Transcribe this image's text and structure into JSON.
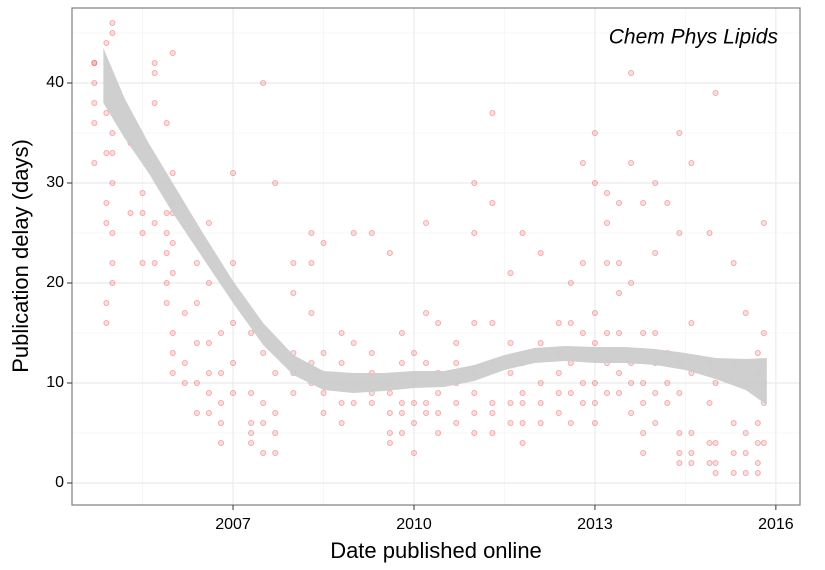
{
  "chart_data": {
    "type": "scatter",
    "annotation": "Chem Phys Lipids",
    "x_label": "Date published online",
    "y_label": "Publication delay (days)",
    "xlim": [
      2004.33,
      2016.4
    ],
    "xticks": [
      2007,
      2010,
      2013,
      2016
    ],
    "xminor": [
      2005.5,
      2008.5,
      2011.5,
      2014.5
    ],
    "ylim": [
      -2.2,
      47.5
    ],
    "yticks": [
      0,
      10,
      20,
      30,
      40
    ],
    "yminor": [
      5,
      15,
      25,
      35,
      45
    ],
    "grid": true,
    "points": {
      "color": "#e41a1c",
      "x": [
        2004.7,
        2004.7,
        2004.7,
        2004.7,
        2004.7,
        2004.7,
        2004.9,
        2004.9,
        2004.9,
        2004.9,
        2004.9,
        2004.9,
        2004.9,
        2005.0,
        2005.0,
        2005.0,
        2005.0,
        2005.0,
        2005.0,
        2005.0,
        2005.0,
        2005.3,
        2005.3,
        2005.5,
        2005.5,
        2005.5,
        2005.5,
        2005.7,
        2005.7,
        2005.7,
        2005.7,
        2005.7,
        2005.9,
        2005.9,
        2005.9,
        2005.9,
        2005.9,
        2005.9,
        2006.0,
        2006.0,
        2006.0,
        2006.0,
        2006.0,
        2006.0,
        2006.0,
        2006.0,
        2006.0,
        2006.2,
        2006.2,
        2006.2,
        2006.4,
        2006.4,
        2006.4,
        2006.4,
        2006.4,
        2006.4,
        2006.6,
        2006.6,
        2006.6,
        2006.6,
        2006.6,
        2006.6,
        2006.8,
        2006.8,
        2006.8,
        2006.8,
        2006.8,
        2007.0,
        2007.0,
        2007.0,
        2007.0,
        2007.0,
        2007.3,
        2007.3,
        2007.3,
        2007.3,
        2007.3,
        2007.5,
        2007.5,
        2007.5,
        2007.5,
        2007.5,
        2007.7,
        2007.7,
        2007.7,
        2007.7,
        2007.7,
        2008.0,
        2008.0,
        2008.0,
        2008.0,
        2008.0,
        2008.3,
        2008.3,
        2008.3,
        2008.3,
        2008.3,
        2008.5,
        2008.5,
        2008.5,
        2008.5,
        2008.8,
        2008.8,
        2008.8,
        2008.8,
        2008.8,
        2009.0,
        2009.0,
        2009.0,
        2009.0,
        2009.3,
        2009.3,
        2009.3,
        2009.3,
        2009.3,
        2009.6,
        2009.6,
        2009.6,
        2009.6,
        2009.6,
        2009.6,
        2009.8,
        2009.8,
        2009.8,
        2009.8,
        2009.8,
        2009.8,
        2010.0,
        2010.0,
        2010.0,
        2010.0,
        2010.0,
        2010.2,
        2010.2,
        2010.2,
        2010.2,
        2010.2,
        2010.4,
        2010.4,
        2010.4,
        2010.4,
        2010.4,
        2010.7,
        2010.7,
        2010.7,
        2010.7,
        2010.7,
        2011.0,
        2011.0,
        2011.0,
        2011.0,
        2011.0,
        2011.0,
        2011.0,
        2011.3,
        2011.3,
        2011.3,
        2011.3,
        2011.3,
        2011.3,
        2011.3,
        2011.6,
        2011.6,
        2011.6,
        2011.6,
        2011.6,
        2011.8,
        2011.8,
        2011.8,
        2011.8,
        2011.8,
        2011.8,
        2012.1,
        2012.1,
        2012.1,
        2012.1,
        2012.1,
        2012.4,
        2012.4,
        2012.4,
        2012.4,
        2012.4,
        2012.6,
        2012.6,
        2012.6,
        2012.6,
        2012.6,
        2012.8,
        2012.8,
        2012.8,
        2012.8,
        2012.8,
        2013.0,
        2013.0,
        2013.0,
        2013.0,
        2013.0,
        2013.0,
        2013.0,
        2013.2,
        2013.2,
        2013.2,
        2013.2,
        2013.2,
        2013.2,
        2013.4,
        2013.4,
        2013.4,
        2013.4,
        2013.4,
        2013.4,
        2013.6,
        2013.6,
        2013.6,
        2013.6,
        2013.6,
        2013.6,
        2013.8,
        2013.8,
        2013.8,
        2013.8,
        2013.8,
        2013.8,
        2014.0,
        2014.0,
        2014.0,
        2014.0,
        2014.0,
        2014.0,
        2014.2,
        2014.2,
        2014.2,
        2014.2,
        2014.4,
        2014.4,
        2014.4,
        2014.4,
        2014.4,
        2014.4,
        2014.4,
        2014.6,
        2014.6,
        2014.6,
        2014.6,
        2014.6,
        2014.6,
        2014.9,
        2014.9,
        2014.9,
        2014.9,
        2014.9,
        2015.0,
        2015.0,
        2015.0,
        2015.0,
        2015.0,
        2015.3,
        2015.3,
        2015.3,
        2015.3,
        2015.3,
        2015.5,
        2015.5,
        2015.5,
        2015.5,
        2015.5,
        2015.7,
        2015.7,
        2015.7,
        2015.7,
        2015.7,
        2015.7,
        2015.8,
        2015.8,
        2015.8,
        2015.8,
        2015.8
      ],
      "y": [
        32,
        42,
        42,
        38,
        40,
        36,
        44,
        28,
        26,
        18,
        16,
        37,
        33,
        30,
        25,
        22,
        20,
        45,
        46,
        35,
        33,
        27,
        34,
        29,
        25,
        22,
        27,
        42,
        38,
        41,
        26,
        22,
        27,
        25,
        36,
        23,
        20,
        18,
        43,
        31,
        28,
        27,
        24,
        21,
        15,
        13,
        11,
        10,
        12,
        17,
        25,
        22,
        18,
        14,
        10,
        7,
        14,
        20,
        26,
        11,
        9,
        7,
        15,
        11,
        8,
        6,
        4,
        31,
        22,
        16,
        12,
        9,
        15,
        9,
        6,
        5,
        4,
        40,
        13,
        8,
        6,
        3,
        30,
        11,
        7,
        5,
        3,
        22,
        19,
        13,
        11,
        9,
        25,
        22,
        17,
        12,
        10,
        24,
        13,
        9,
        7,
        15,
        12,
        10,
        8,
        6,
        25,
        14,
        10,
        8,
        25,
        13,
        11,
        9,
        8,
        23,
        10,
        9,
        7,
        5,
        4,
        15,
        12,
        10,
        8,
        7,
        5,
        13,
        10,
        8,
        6,
        3,
        26,
        17,
        12,
        8,
        7,
        16,
        11,
        9,
        7,
        5,
        14,
        12,
        10,
        8,
        6,
        30,
        25,
        16,
        11,
        9,
        7,
        5,
        37,
        28,
        16,
        12,
        8,
        7,
        5,
        21,
        14,
        11,
        8,
        6,
        25,
        12,
        9,
        8,
        6,
        4,
        23,
        14,
        10,
        8,
        6,
        16,
        13,
        11,
        9,
        7,
        20,
        16,
        12,
        9,
        6,
        32,
        22,
        15,
        10,
        8,
        35,
        30,
        17,
        14,
        10,
        8,
        6,
        29,
        26,
        22,
        15,
        12,
        9,
        28,
        22,
        19,
        15,
        11,
        9,
        41,
        32,
        20,
        12,
        10,
        7,
        28,
        15,
        10,
        8,
        5,
        3,
        30,
        23,
        15,
        12,
        9,
        6,
        28,
        13,
        10,
        8,
        35,
        25,
        12,
        9,
        5,
        3,
        2,
        32,
        16,
        11,
        5,
        3,
        2,
        25,
        12,
        8,
        4,
        2,
        39,
        10,
        4,
        2,
        1,
        22,
        12,
        6,
        3,
        1,
        17,
        10,
        5,
        3,
        1,
        13,
        11,
        6,
        4,
        2,
        1,
        26,
        15,
        10,
        8,
        4
      ]
    },
    "smooth": {
      "color": "#cccccc",
      "x": [
        2004.85,
        2005.2,
        2005.6,
        2006.0,
        2006.5,
        2007.0,
        2007.5,
        2008.0,
        2008.5,
        2009.0,
        2009.5,
        2010.0,
        2010.5,
        2011.0,
        2011.5,
        2012.0,
        2012.5,
        2013.0,
        2013.5,
        2014.0,
        2014.5,
        2015.0,
        2015.5,
        2015.85
      ],
      "lower": [
        38,
        34.5,
        31,
        27,
        22.5,
        18,
        13.8,
        10.8,
        9.3,
        9,
        9.2,
        9.5,
        9.6,
        10.2,
        11.3,
        12,
        12.2,
        12,
        12,
        11.8,
        11.3,
        10.4,
        9.3,
        7.8
      ],
      "upper": [
        43.5,
        38.5,
        34,
        30,
        25,
        20.2,
        16,
        12.8,
        11.2,
        11,
        11,
        11.2,
        11.2,
        11.8,
        12.8,
        13.5,
        13.7,
        13.6,
        13.6,
        13.4,
        13,
        12.5,
        12.4,
        12.5
      ]
    }
  }
}
